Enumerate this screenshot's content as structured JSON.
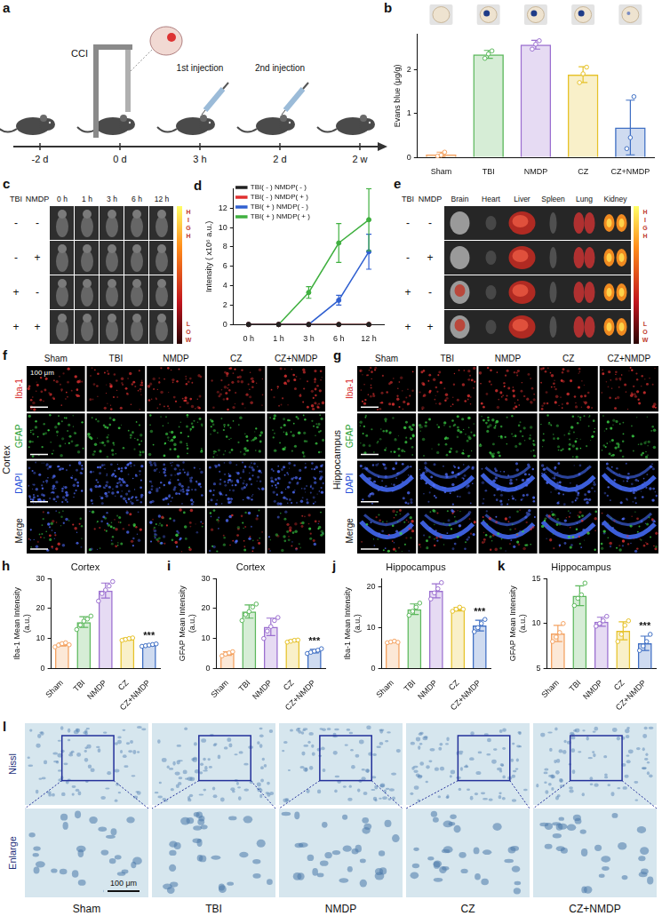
{
  "panel_a": {
    "letter": "a",
    "procedure": "CCI",
    "injections": [
      "1st injection",
      "2nd injection"
    ],
    "timepoints": [
      "-2 d",
      "0 d",
      "3 h",
      "2 d",
      "2 w"
    ]
  },
  "chart_data": [
    {
      "panel": "b",
      "type": "bar",
      "ylabel": "Evans blue (μg/g)",
      "categories": [
        "Sham",
        "TBI",
        "NMDP",
        "CZ",
        "CZ+NMDP"
      ],
      "values": [
        0.07,
        2.34,
        2.56,
        1.88,
        0.68
      ],
      "errors": [
        0.05,
        0.09,
        0.1,
        0.18,
        0.62
      ],
      "points": [
        [
          0.03,
          0.05,
          0.12
        ],
        [
          2.25,
          2.35,
          2.42
        ],
        [
          2.46,
          2.57,
          2.65
        ],
        [
          1.7,
          1.9,
          2.05
        ],
        [
          0.2,
          0.45,
          1.38
        ]
      ],
      "colors": [
        "#f4a261",
        "#5cb85c",
        "#9b6fd0",
        "#e6c229",
        "#3f6fc4"
      ],
      "ylim": [
        0,
        2.8
      ],
      "yticks": [
        0,
        1,
        2
      ],
      "grid": false
    },
    {
      "panel": "d",
      "type": "line",
      "ylabel": "Intensity ( x10⁶ a.u.)",
      "categories": [
        "0 h",
        "1 h",
        "3 h",
        "6 h",
        "12 h"
      ],
      "series": [
        {
          "name": "TBI( - ) NMDP( - )",
          "color": "#222222",
          "values": [
            0,
            0,
            0,
            0,
            0
          ],
          "errors": [
            0,
            0,
            0,
            0,
            0
          ]
        },
        {
          "name": "TBI( - ) NMDP( + )",
          "color": "#e03030",
          "values": [
            0,
            0,
            0,
            0,
            0
          ],
          "errors": [
            0,
            0,
            0,
            0,
            0
          ]
        },
        {
          "name": "TBI( + ) NMDP( - )",
          "color": "#3060d0",
          "values": [
            0,
            0,
            0,
            2.5,
            7.5
          ],
          "errors": [
            0,
            0,
            0,
            0.5,
            1.8
          ]
        },
        {
          "name": "TBI( + ) NMDP( + )",
          "color": "#40b040",
          "values": [
            0,
            0,
            3.3,
            8.4,
            10.8
          ],
          "errors": [
            0,
            0,
            0.6,
            2,
            3.2
          ]
        }
      ],
      "ylim": [
        0,
        14
      ],
      "yticks": [
        0,
        2,
        4,
        6,
        8,
        10,
        12
      ],
      "legend": "top-left",
      "marker": "circle",
      "grid": false
    },
    {
      "panel": "h",
      "type": "bar",
      "title": "Cortex",
      "ylabel": "Iba-1 Mean Intensity (a.u.)",
      "categories": [
        "Sham",
        "TBI",
        "NMDP",
        "CZ",
        "CZ+NMDP"
      ],
      "values": [
        8,
        15.5,
        26,
        9.8,
        7.8
      ],
      "errors": [
        0.5,
        1.8,
        2.5,
        0.35,
        0.3
      ],
      "points": [
        [
          7.2,
          7.8,
          8.3,
          8.6,
          7.9
        ],
        [
          13,
          14.5,
          15.8,
          16.5,
          17.5
        ],
        [
          22.5,
          25,
          26.2,
          27.5,
          29
        ],
        [
          9.4,
          9.7,
          10,
          10.2
        ],
        [
          7.4,
          7.6,
          7.8,
          8.0,
          8.2
        ]
      ],
      "colors": [
        "#f4a261",
        "#5cb85c",
        "#9b6fd0",
        "#e6c229",
        "#3f6fc4"
      ],
      "ylim": [
        0,
        30
      ],
      "yticks": [
        0,
        10,
        20,
        30
      ],
      "grid": false,
      "annotations": [
        {
          "category": "CZ+NMDP",
          "text": "***"
        }
      ]
    },
    {
      "panel": "i",
      "type": "bar",
      "title": "Cortex",
      "ylabel": "GFAP Mean Intensity (a.u.)",
      "categories": [
        "Sham",
        "TBI",
        "NMDP",
        "CZ",
        "CZ+NMDP"
      ],
      "values": [
        5,
        19,
        13.9,
        9.2,
        5.8
      ],
      "errors": [
        0.6,
        2.2,
        2.9,
        0.3,
        0.6
      ],
      "points": [
        [
          4.2,
          4.8,
          5.2,
          5.6
        ],
        [
          16,
          18,
          19,
          20.5,
          21.5
        ],
        [
          10,
          12.5,
          14,
          16,
          17
        ],
        [
          8.8,
          9.1,
          9.4,
          9.5
        ],
        [
          5,
          5.4,
          5.8,
          6.1,
          6.6
        ]
      ],
      "colors": [
        "#f4a261",
        "#5cb85c",
        "#9b6fd0",
        "#e6c229",
        "#3f6fc4"
      ],
      "ylim": [
        0,
        30
      ],
      "yticks": [
        0,
        10,
        20,
        30
      ],
      "grid": false,
      "annotations": [
        {
          "category": "CZ+NMDP",
          "text": "***"
        }
      ]
    },
    {
      "panel": "j",
      "type": "bar",
      "title": "Hippocampus",
      "ylabel": "Iba-1 Mean Intensity (a.u.)",
      "categories": [
        "Sham",
        "TBI",
        "NMDP",
        "CZ",
        "CZ+NMDP"
      ],
      "values": [
        6.5,
        14.5,
        19,
        14.5,
        10.5
      ],
      "errors": [
        0.2,
        1.3,
        1.7,
        0.4,
        1.3
      ],
      "points": [
        [
          6.3,
          6.5,
          6.7,
          6.4
        ],
        [
          13,
          14,
          15,
          16
        ],
        [
          17,
          18.5,
          19.5,
          21
        ],
        [
          14,
          14.5,
          15,
          14.5
        ],
        [
          9,
          10,
          11,
          12
        ]
      ],
      "colors": [
        "#f4a261",
        "#5cb85c",
        "#9b6fd0",
        "#e6c229",
        "#3f6fc4"
      ],
      "ylim": [
        0,
        22
      ],
      "yticks": [
        0,
        10,
        20
      ],
      "grid": false,
      "annotations": [
        {
          "category": "CZ+NMDP",
          "text": "***"
        }
      ]
    },
    {
      "panel": "k",
      "type": "bar",
      "title": "Hippocampus",
      "ylabel": "GFAP Mean Intensity (a.u.)",
      "categories": [
        "Sham",
        "TBI",
        "NMDP",
        "CZ",
        "CZ+NMDP"
      ],
      "values": [
        8.9,
        13.1,
        10.2,
        9.2,
        7.8
      ],
      "errors": [
        0.9,
        1.1,
        0.5,
        1.0,
        0.8
      ],
      "points": [
        [
          8,
          8.5,
          9,
          10
        ],
        [
          12,
          12.8,
          13.2,
          14.5
        ],
        [
          9.7,
          10,
          10.3,
          10.8
        ],
        [
          8,
          8.8,
          9.8,
          10.3
        ],
        [
          7,
          7.5,
          8,
          8.8
        ]
      ],
      "colors": [
        "#f4a261",
        "#5cb85c",
        "#9b6fd0",
        "#e6c229",
        "#3f6fc4"
      ],
      "ylim": [
        5,
        15
      ],
      "yticks": [
        5,
        10,
        15
      ],
      "grid": false,
      "annotations": [
        {
          "category": "CZ+NMDP",
          "text": "***"
        }
      ]
    }
  ],
  "panel_c": {
    "letter": "c",
    "row_header": [
      "TBI",
      "NMDP"
    ],
    "rows": [
      [
        "-",
        "-"
      ],
      [
        "-",
        "+"
      ],
      [
        "+",
        "-"
      ],
      [
        "+",
        "+"
      ]
    ],
    "columns": [
      "0 h",
      "1 h",
      "3 h",
      "6 h",
      "12 h"
    ],
    "color_scale": [
      "HIGH",
      "LOW"
    ]
  },
  "panel_e": {
    "letter": "e",
    "row_header": [
      "TBI",
      "NMDP"
    ],
    "rows": [
      [
        "-",
        "-"
      ],
      [
        "-",
        "+"
      ],
      [
        "+",
        "-"
      ],
      [
        "+",
        "+"
      ]
    ],
    "columns": [
      "Brain",
      "Heart",
      "Liver",
      "Spleen",
      "Lung",
      "Kidney"
    ],
    "color_scale": [
      "HIGH",
      "LOW"
    ]
  },
  "panel_f": {
    "letter": "f",
    "region": "Cortex",
    "columns": [
      "Sham",
      "TBI",
      "NMDP",
      "CZ",
      "CZ+NMDP"
    ],
    "rows": [
      "Iba-1",
      "GFAP",
      "DAPI",
      "Merge"
    ],
    "scale_bar": "100 μm"
  },
  "panel_g": {
    "letter": "g",
    "region": "Hippocampus",
    "columns": [
      "Sham",
      "TBI",
      "NMDP",
      "CZ",
      "CZ+NMDP"
    ],
    "rows": [
      "Iba-1",
      "GFAP",
      "DAPI",
      "Merge"
    ]
  },
  "panel_l": {
    "letter": "l",
    "rows": [
      "Nissl",
      "Enlarge"
    ],
    "columns": [
      "Sham",
      "TBI",
      "NMDP",
      "CZ",
      "CZ+NMDP"
    ],
    "scale_bar": "100 μm"
  }
}
